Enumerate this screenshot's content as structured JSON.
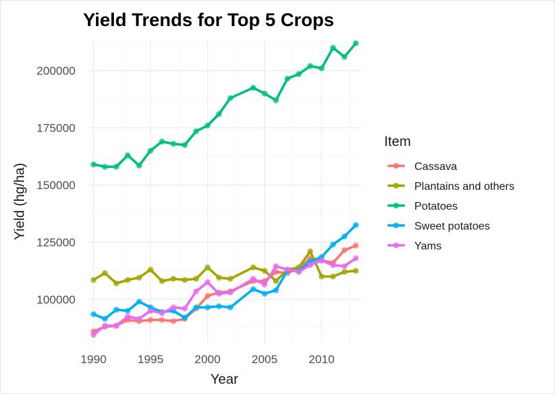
{
  "chart_data": {
    "type": "line",
    "title": "Yield Trends for Top 5 Crops",
    "xlabel": "Year",
    "ylabel": "Yield (hg/ha)",
    "xlim": [
      1989.5,
      2013.5
    ],
    "ylim": [
      80500,
      213500
    ],
    "x_ticks": [
      1990,
      1995,
      2000,
      2005,
      2010
    ],
    "y_ticks": [
      100000,
      125000,
      150000,
      175000,
      200000
    ],
    "grid": true,
    "legend": {
      "title": "Item",
      "position": "right"
    },
    "series": [
      {
        "name": "Cassava",
        "color": "#F8766D",
        "points": [
          [
            1990,
            86000
          ],
          [
            1991,
            88000
          ],
          [
            1992,
            88500
          ],
          [
            1993,
            91000
          ],
          [
            1994,
            90500
          ],
          [
            1995,
            91000
          ],
          [
            1996,
            91000
          ],
          [
            1997,
            90500
          ],
          [
            1998,
            91500
          ],
          [
            1999,
            96000
          ],
          [
            2000,
            101500
          ],
          [
            2001,
            103000
          ],
          [
            2002,
            103500
          ],
          [
            2004,
            108000
          ],
          [
            2005,
            108000
          ],
          [
            2006,
            112000
          ],
          [
            2007,
            111500
          ],
          [
            2008,
            113500
          ],
          [
            2009,
            118000
          ],
          [
            2010,
            117000
          ],
          [
            2011,
            116000
          ],
          [
            2012,
            121500
          ],
          [
            2013,
            123500
          ]
        ]
      },
      {
        "name": "Plantains and others",
        "color": "#A3A500",
        "points": [
          [
            1990,
            108500
          ],
          [
            1991,
            111500
          ],
          [
            1992,
            107000
          ],
          [
            1993,
            108500
          ],
          [
            1994,
            109500
          ],
          [
            1995,
            113000
          ],
          [
            1996,
            108000
          ],
          [
            1997,
            109000
          ],
          [
            1998,
            108500
          ],
          [
            1999,
            109000
          ],
          [
            2000,
            114000
          ],
          [
            2001,
            109500
          ],
          [
            2002,
            109000
          ],
          [
            2004,
            114000
          ],
          [
            2005,
            112500
          ],
          [
            2006,
            108000
          ],
          [
            2007,
            113000
          ],
          [
            2008,
            114000
          ],
          [
            2009,
            121000
          ],
          [
            2010,
            110000
          ],
          [
            2011,
            110000
          ],
          [
            2012,
            112000
          ],
          [
            2013,
            112500
          ]
        ]
      },
      {
        "name": "Potatoes",
        "color": "#00BF7D",
        "points": [
          [
            1990,
            159000
          ],
          [
            1991,
            158000
          ],
          [
            1992,
            158000
          ],
          [
            1993,
            163000
          ],
          [
            1994,
            158500
          ],
          [
            1995,
            165000
          ],
          [
            1996,
            169000
          ],
          [
            1997,
            168000
          ],
          [
            1998,
            167500
          ],
          [
            1999,
            173500
          ],
          [
            2000,
            176000
          ],
          [
            2001,
            181000
          ],
          [
            2002,
            188000
          ],
          [
            2004,
            192500
          ],
          [
            2005,
            190000
          ],
          [
            2006,
            187000
          ],
          [
            2007,
            196500
          ],
          [
            2008,
            198500
          ],
          [
            2009,
            202000
          ],
          [
            2010,
            201000
          ],
          [
            2011,
            210000
          ],
          [
            2012,
            206000
          ],
          [
            2013,
            212000
          ]
        ]
      },
      {
        "name": "Sweet potatoes",
        "color": "#00B0F6",
        "points": [
          [
            1990,
            93500
          ],
          [
            1991,
            91500
          ],
          [
            1992,
            95500
          ],
          [
            1993,
            95000
          ],
          [
            1994,
            99000
          ],
          [
            1995,
            96500
          ],
          [
            1996,
            94500
          ],
          [
            1997,
            95000
          ],
          [
            1998,
            92000
          ],
          [
            1999,
            96500
          ],
          [
            2000,
            96500
          ],
          [
            2001,
            97000
          ],
          [
            2002,
            96500
          ],
          [
            2004,
            104500
          ],
          [
            2005,
            102500
          ],
          [
            2006,
            104000
          ],
          [
            2007,
            112500
          ],
          [
            2008,
            112500
          ],
          [
            2009,
            116500
          ],
          [
            2010,
            118500
          ],
          [
            2011,
            124000
          ],
          [
            2012,
            127500
          ],
          [
            2013,
            132500
          ]
        ]
      },
      {
        "name": "Yams",
        "color": "#E76BF3",
        "points": [
          [
            1990,
            84500
          ],
          [
            1991,
            88500
          ],
          [
            1992,
            88500
          ],
          [
            1993,
            92500
          ],
          [
            1994,
            91500
          ],
          [
            1995,
            95000
          ],
          [
            1996,
            94000
          ],
          [
            1997,
            96500
          ],
          [
            1998,
            96000
          ],
          [
            1999,
            103500
          ],
          [
            2000,
            107500
          ],
          [
            2001,
            102500
          ],
          [
            2002,
            103000
          ],
          [
            2004,
            109000
          ],
          [
            2005,
            106500
          ],
          [
            2006,
            114500
          ],
          [
            2007,
            113000
          ],
          [
            2008,
            112000
          ],
          [
            2009,
            115000
          ],
          [
            2010,
            117000
          ],
          [
            2011,
            115000
          ],
          [
            2012,
            114500
          ],
          [
            2013,
            118000
          ]
        ]
      }
    ]
  }
}
